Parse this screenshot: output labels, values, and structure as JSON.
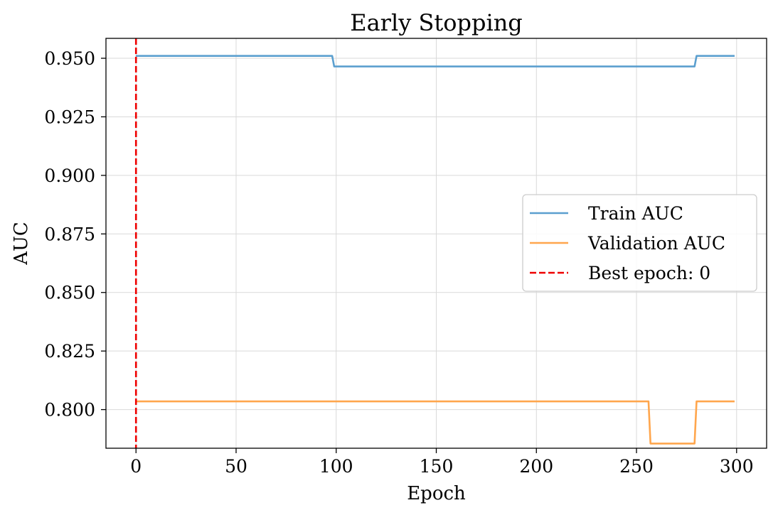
{
  "chart_data": {
    "type": "line",
    "title": "Early Stopping",
    "xlabel": "Epoch",
    "ylabel": "AUC",
    "xlim": [
      -15,
      315
    ],
    "ylim": [
      0.7835,
      0.9585
    ],
    "xticks": [
      0,
      50,
      100,
      150,
      200,
      250,
      300
    ],
    "xtick_labels": [
      "0",
      "50",
      "100",
      "150",
      "200",
      "250",
      "300"
    ],
    "yticks": [
      0.8,
      0.825,
      0.85,
      0.875,
      0.9,
      0.925,
      0.95
    ],
    "ytick_labels": [
      "0.800",
      "0.825",
      "0.850",
      "0.875",
      "0.900",
      "0.925",
      "0.950"
    ],
    "grid": true,
    "legend_position": "center-right",
    "series": [
      {
        "name": "Train AUC",
        "color": "#5b9fcf",
        "style": "solid",
        "points": [
          [
            0,
            0.951
          ],
          [
            98,
            0.951
          ],
          [
            99,
            0.9465
          ],
          [
            279,
            0.9465
          ],
          [
            280,
            0.951
          ],
          [
            299,
            0.951
          ]
        ]
      },
      {
        "name": "Validation AUC",
        "color": "#ffa64d",
        "style": "solid",
        "points": [
          [
            0,
            0.8035
          ],
          [
            256,
            0.8035
          ],
          [
            257,
            0.7855
          ],
          [
            279,
            0.7855
          ],
          [
            280,
            0.8035
          ],
          [
            299,
            0.8035
          ]
        ]
      }
    ],
    "vlines": [
      {
        "name": "Best epoch: 0",
        "x": 0,
        "color": "#ee0000",
        "style": "dashed"
      }
    ]
  }
}
